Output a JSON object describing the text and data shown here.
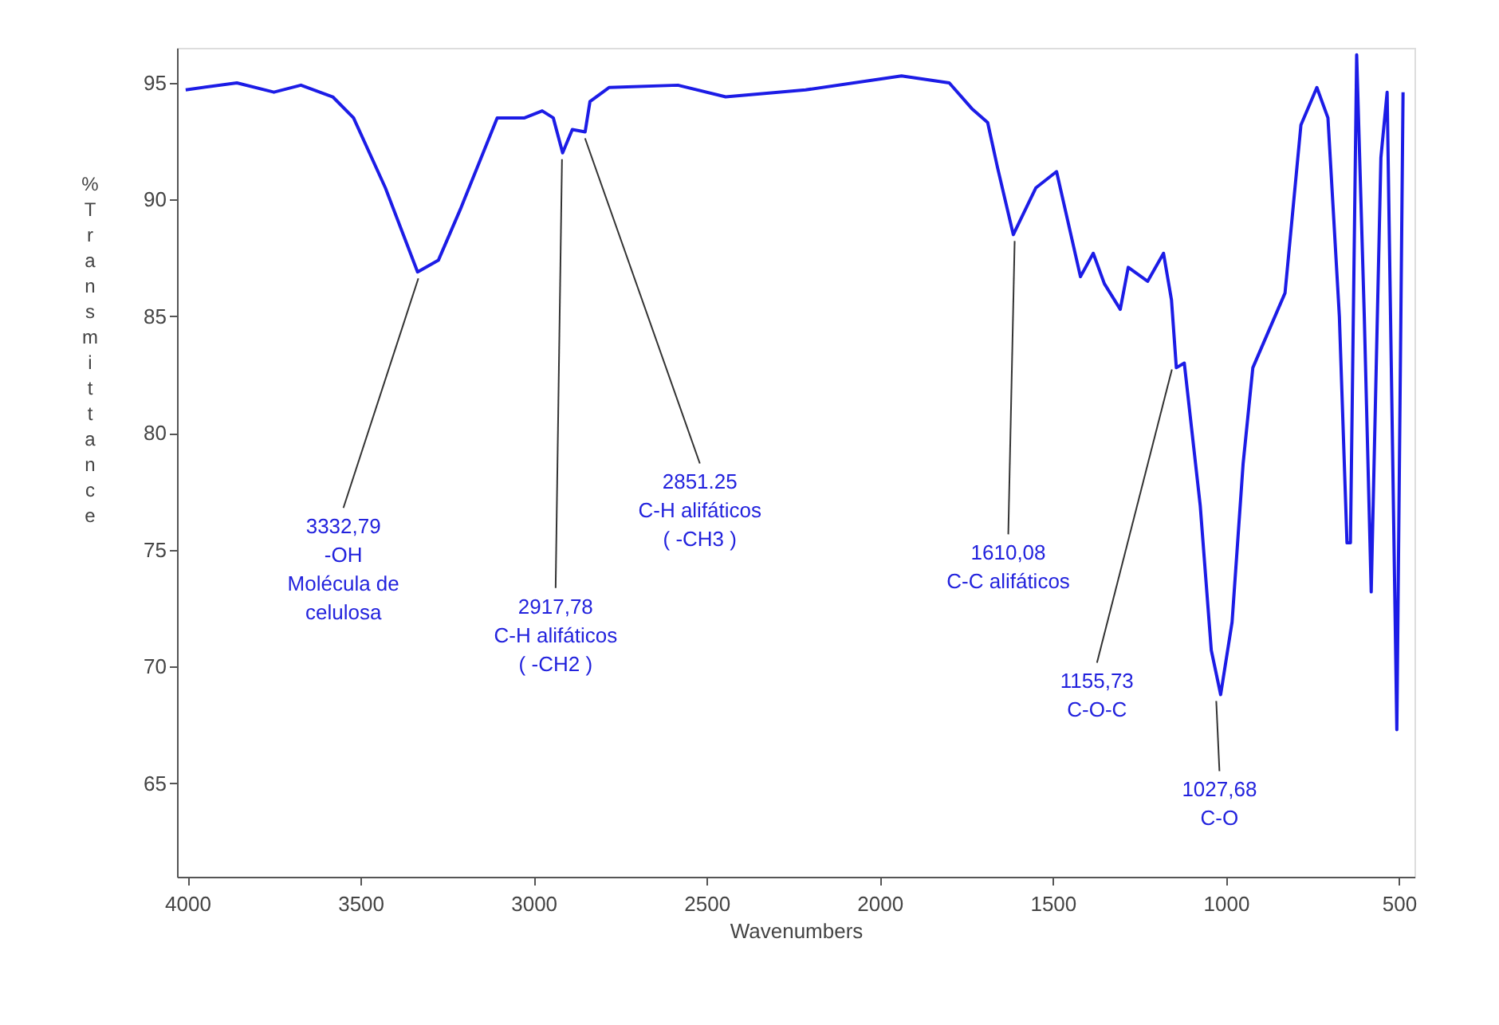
{
  "chart_data": {
    "type": "line",
    "xlabel": "Wavenumbers",
    "ylabel": "% Transmittance",
    "xlim": [
      4030,
      455
    ],
    "ylim": [
      61,
      96.5
    ],
    "xticks": [
      4000,
      3500,
      3000,
      2500,
      2000,
      1500,
      1000,
      500
    ],
    "yticks": [
      65,
      70,
      75,
      80,
      85,
      90,
      95
    ],
    "grid": false,
    "marker": "none",
    "line_style": "solid",
    "series": [
      {
        "color": "#1c1ce6",
        "x": [
          4005,
          3857,
          3750,
          3672,
          3580,
          3520,
          3428,
          3335,
          3275,
          3211,
          3105,
          3026,
          2975,
          2943,
          2916,
          2888,
          2851,
          2837,
          2782,
          2583,
          2445,
          2214,
          1937,
          1799,
          1734,
          1688,
          1660,
          1614,
          1549,
          1489,
          1420,
          1383,
          1351,
          1305,
          1282,
          1226,
          1180,
          1157,
          1143,
          1120,
          1074,
          1042,
          1015,
          982,
          950,
          922,
          829,
          783,
          737,
          705,
          672,
          650,
          640,
          622,
          600,
          580,
          552,
          534,
          506,
          488
        ],
        "values": [
          94.7,
          95.0,
          94.6,
          94.9,
          94.4,
          93.5,
          90.5,
          86.9,
          87.4,
          89.6,
          93.5,
          93.5,
          93.8,
          93.5,
          92.0,
          93.0,
          92.9,
          94.2,
          94.8,
          94.9,
          94.4,
          94.7,
          95.3,
          95.0,
          93.9,
          93.3,
          91.4,
          88.5,
          90.5,
          91.2,
          86.7,
          87.7,
          86.4,
          85.3,
          87.1,
          86.5,
          87.7,
          85.7,
          82.8,
          83.0,
          76.9,
          70.7,
          68.8,
          71.9,
          78.7,
          82.8,
          86.0,
          93.2,
          94.8,
          93.5,
          85.0,
          75.3,
          75.3,
          96.2,
          85.0,
          73.2,
          91.8,
          94.6,
          67.3,
          94.6
        ]
      }
    ],
    "annotations": [
      {
        "text": "3332,79\n-OH\nMolécula de\ncelulosa",
        "x": 3332.79,
        "y": 86.9
      },
      {
        "text": "2917,78\nC-H alifáticos\n( -CH2 )",
        "x": 2917.78,
        "y": 92.0
      },
      {
        "text": "2851.25\nC-H alifáticos\n( -CH3 )",
        "x": 2851.25,
        "y": 92.9
      },
      {
        "text": "1610,08\nC-C alifáticos",
        "x": 1610.08,
        "y": 88.5
      },
      {
        "text": "1155,73\nC-O-C",
        "x": 1155.73,
        "y": 83.0
      },
      {
        "text": "1027,68\nC-O",
        "x": 1027.68,
        "y": 68.8
      }
    ]
  }
}
